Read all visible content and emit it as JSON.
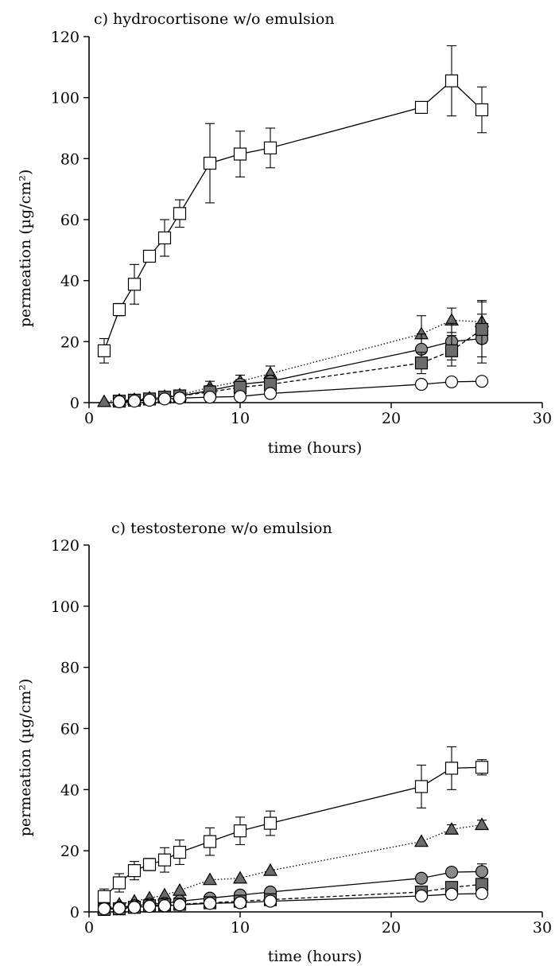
{
  "chart_data": [
    {
      "type": "line",
      "title": "c) hydrocortisone w/o emulsion",
      "xlabel": "time (hours)",
      "ylabel": "permeation (µg/cm²)",
      "xlim": [
        0,
        30
      ],
      "ylim": [
        0,
        120
      ],
      "xticks": [
        0,
        10,
        20,
        30
      ],
      "yticks": [
        0,
        20,
        40,
        60,
        80,
        100,
        120
      ],
      "grid": false,
      "series": [
        {
          "marker": "open-square",
          "line": "solid",
          "color": "#ffffff",
          "x": [
            1,
            2,
            3,
            4,
            5,
            6,
            8,
            10,
            12,
            22,
            24,
            26
          ],
          "y": [
            17,
            30.5,
            38.8,
            48,
            54,
            62,
            78.5,
            81.5,
            83.5,
            96.8,
            105.5,
            96
          ],
          "err": [
            4,
            2,
            6.5,
            1,
            6,
            4.5,
            13,
            7.5,
            6.5,
            0,
            11.5,
            7.5
          ]
        },
        {
          "marker": "filled-triangle",
          "line": "dotted",
          "color": "#6b6b6b",
          "x": [
            1,
            2,
            3,
            4,
            5,
            6,
            8,
            10,
            12,
            22,
            24,
            26
          ],
          "y": [
            0.3,
            0.8,
            1,
            1.5,
            2,
            2.5,
            5,
            7,
            9.5,
            22.5,
            27,
            26.5
          ],
          "err": [
            0,
            0,
            0,
            0,
            0,
            1,
            2,
            2,
            2.5,
            6,
            4,
            7
          ]
        },
        {
          "marker": "filled-circle",
          "line": "solid",
          "color": "#8a8a8a",
          "x": [
            2,
            3,
            4,
            5,
            6,
            8,
            10,
            12,
            22,
            24,
            26
          ],
          "y": [
            0.5,
            0.8,
            1.2,
            1.8,
            2.2,
            4,
            6,
            7,
            17.5,
            20,
            21
          ],
          "err": [
            0,
            0,
            0,
            0,
            0,
            1.5,
            1.5,
            2,
            5,
            6,
            8
          ]
        },
        {
          "marker": "filled-square",
          "line": "dashed",
          "color": "#6b6b6b",
          "x": [
            2,
            3,
            4,
            5,
            6,
            8,
            10,
            12,
            22,
            24,
            26
          ],
          "y": [
            0.5,
            0.8,
            1.2,
            1.8,
            2.2,
            3.5,
            5,
            6,
            13,
            17,
            24
          ],
          "err": [
            0,
            0,
            0,
            0,
            0,
            1,
            1.5,
            2,
            3.5,
            5,
            9
          ]
        },
        {
          "marker": "open-circle",
          "line": "solid",
          "color": "#ffffff",
          "x": [
            2,
            3,
            4,
            5,
            6,
            8,
            10,
            12,
            22,
            24,
            26
          ],
          "y": [
            0.3,
            0.5,
            0.8,
            1.2,
            1.5,
            1.8,
            2,
            3,
            6,
            6.8,
            7
          ],
          "err": [
            0,
            0,
            0,
            0,
            0,
            0,
            0,
            0,
            0,
            0,
            0
          ]
        }
      ]
    },
    {
      "type": "line",
      "title": "c) testosterone w/o emulsion",
      "xlabel": "time (hours)",
      "ylabel": "permeation (µg/cm²)",
      "xlim": [
        0,
        30
      ],
      "ylim": [
        0,
        120
      ],
      "xticks": [
        0,
        10,
        20,
        30
      ],
      "yticks": [
        0,
        20,
        40,
        60,
        80,
        100,
        120
      ],
      "grid": false,
      "series": [
        {
          "marker": "open-square",
          "line": "solid",
          "color": "#ffffff",
          "x": [
            1,
            2,
            3,
            4,
            5,
            6,
            8,
            10,
            12,
            22,
            24,
            26
          ],
          "y": [
            5,
            9.5,
            13.5,
            15.5,
            17,
            19.5,
            23,
            26.5,
            29,
            41,
            47,
            47.3
          ],
          "err": [
            2.5,
            3,
            3,
            2,
            4,
            4,
            4.5,
            4.5,
            4,
            7,
            7,
            2.5
          ]
        },
        {
          "marker": "filled-triangle",
          "line": "dotted",
          "color": "#6b6b6b",
          "x": [
            1,
            2,
            3,
            4,
            5,
            6,
            8,
            10,
            12,
            22,
            24,
            26
          ],
          "y": [
            1,
            2.5,
            3.5,
            4.5,
            5.5,
            7,
            10.5,
            11,
            13.5,
            23,
            27,
            28.5
          ],
          "err": [
            0,
            0,
            0,
            0,
            0,
            0,
            0,
            0,
            0,
            0,
            1.5,
            1.5
          ]
        },
        {
          "marker": "filled-circle",
          "line": "solid",
          "color": "#8a8a8a",
          "x": [
            1,
            2,
            3,
            4,
            5,
            6,
            8,
            10,
            12,
            22,
            24,
            26
          ],
          "y": [
            1,
            1.5,
            2,
            2.5,
            2.8,
            3.5,
            4.5,
            5.5,
            6.5,
            11,
            13,
            13.2
          ],
          "err": [
            0,
            0,
            0,
            0,
            0,
            0,
            0,
            0,
            0,
            0,
            1,
            2.5
          ]
        },
        {
          "marker": "filled-square",
          "line": "dashed",
          "color": "#6b6b6b",
          "x": [
            1,
            2,
            3,
            4,
            5,
            6,
            8,
            10,
            12,
            22,
            24,
            26
          ],
          "y": [
            0.8,
            1,
            1.5,
            2,
            2.3,
            2.5,
            3,
            3.5,
            4,
            6.5,
            8,
            9
          ],
          "err": [
            0,
            0,
            0,
            0,
            0,
            0,
            0,
            0,
            0,
            0,
            0,
            1.5
          ]
        },
        {
          "marker": "open-circle",
          "line": "solid",
          "color": "#ffffff",
          "x": [
            1,
            2,
            3,
            4,
            5,
            6,
            8,
            10,
            12,
            22,
            24,
            26
          ],
          "y": [
            1,
            1.2,
            1.5,
            1.8,
            2,
            2.3,
            2.8,
            3,
            3.5,
            5.2,
            5.8,
            6
          ],
          "err": [
            0,
            0,
            0,
            0,
            0,
            0,
            0,
            0,
            0,
            0,
            0,
            0
          ]
        }
      ]
    }
  ]
}
